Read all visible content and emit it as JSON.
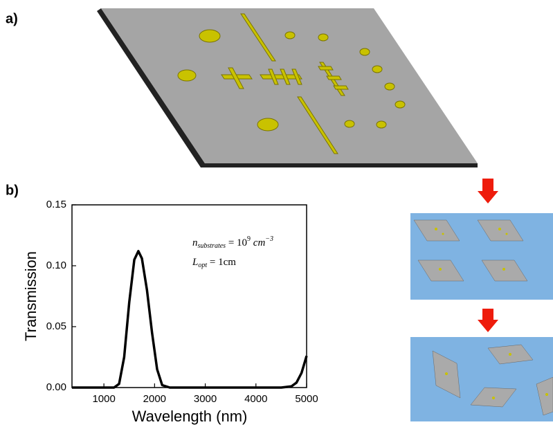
{
  "panel_labels": [
    "a)",
    "b)"
  ],
  "chart_data": {
    "type": "line",
    "x_label": "Wavelength (nm)",
    "y_label": "Transmission",
    "annotation_1": {
      "base": "n",
      "sub": "substrates",
      "rest": " = 10",
      "sup1": "9",
      "unit": " cm",
      "sup2": "−3"
    },
    "annotation_2": {
      "base": "L",
      "sub": "opt",
      "rest": " = 1cm"
    },
    "x": [
      370,
      1000,
      1200,
      1300,
      1400,
      1500,
      1600,
      1680,
      1750,
      1850,
      1950,
      2050,
      2150,
      2300,
      3000,
      4000,
      4500,
      4700,
      4800,
      4900,
      5000
    ],
    "series": [
      {
        "color": "#000000",
        "values": [
          0,
          0,
          0,
          0.003,
          0.025,
          0.07,
          0.105,
          0.112,
          0.106,
          0.08,
          0.045,
          0.015,
          0.002,
          0,
          0,
          0,
          0,
          0.001,
          0.004,
          0.012,
          0.026
        ]
      }
    ],
    "xlim": [
      370,
      5000
    ],
    "xticks": [
      1000,
      2000,
      3000,
      4000,
      5000
    ],
    "ylim": [
      0,
      0.15
    ],
    "yticks": [
      {
        "value": 0,
        "label": "0.00"
      },
      {
        "value": 0.05,
        "label": "0.05"
      },
      {
        "value": 0.1,
        "label": "0.10"
      },
      {
        "value": 0.15,
        "label": "0.15"
      }
    ]
  }
}
